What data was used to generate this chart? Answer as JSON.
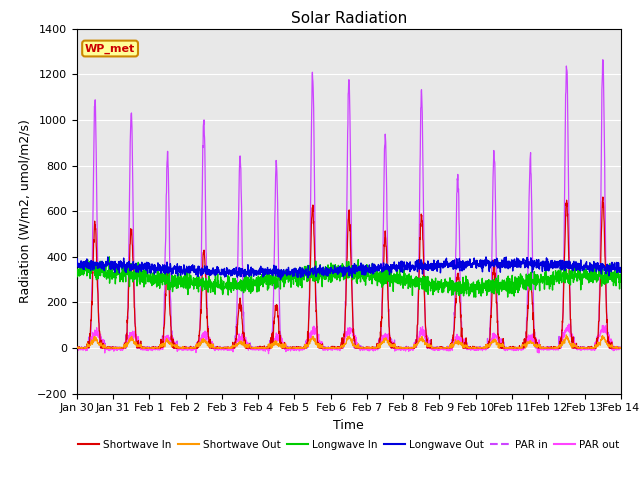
{
  "title": "Solar Radiation",
  "ylabel": "Radiation (W/m2, umol/m2/s)",
  "xlabel": "Time",
  "ylim": [
    -200,
    1400
  ],
  "yticks": [
    -200,
    0,
    200,
    400,
    600,
    800,
    1000,
    1200,
    1400
  ],
  "x_tick_labels": [
    "Jan 30",
    "Jan 31",
    "Feb 1",
    "Feb 2",
    "Feb 3",
    "Feb 4",
    "Feb 5",
    "Feb 6",
    "Feb 7",
    "Feb 8",
    "Feb 9",
    "Feb 10",
    "Feb 11",
    "Feb 12",
    "Feb 13",
    "Feb 14"
  ],
  "wp_met_label": "WP_met",
  "plot_bg_color": "#e8e8e8",
  "title_fontsize": 11,
  "axis_fontsize": 9,
  "tick_fontsize": 8,
  "days": 15,
  "pts_per_day": 144,
  "par_peaks": [
    1070,
    1040,
    850,
    1000,
    830,
    810,
    1200,
    1200,
    930,
    1120,
    760,
    870,
    830,
    1240,
    1270
  ],
  "sw_peaks": [
    540,
    520,
    320,
    430,
    200,
    190,
    610,
    590,
    490,
    590,
    330,
    360,
    310,
    640,
    650
  ],
  "lw_in_base": 310,
  "lw_out_base": 350
}
